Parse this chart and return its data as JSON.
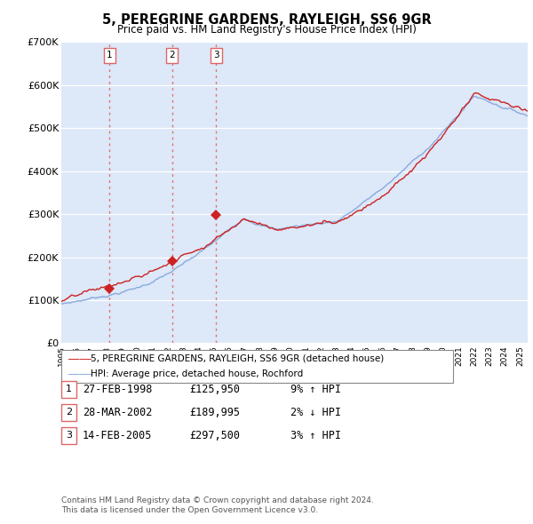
{
  "title": "5, PEREGRINE GARDENS, RAYLEIGH, SS6 9GR",
  "subtitle": "Price paid vs. HM Land Registry's House Price Index (HPI)",
  "bg_color": "#ffffff",
  "plot_bg_color": "#dde8f8",
  "grid_color": "#ffffff",
  "red_line_color": "#cc2222",
  "blue_line_color": "#88aadd",
  "sale_marker_color": "#cc2222",
  "vline_color": "#dd6666",
  "ylim": [
    0,
    700000
  ],
  "yticks": [
    0,
    100000,
    200000,
    300000,
    400000,
    500000,
    600000,
    700000
  ],
  "ytick_labels": [
    "£0",
    "£100K",
    "£200K",
    "£300K",
    "£400K",
    "£500K",
    "£600K",
    "£700K"
  ],
  "sale_years": [
    1998.15,
    2002.24,
    2005.12
  ],
  "sale_prices": [
    125950,
    189995,
    297500
  ],
  "sale_labels": [
    "1",
    "2",
    "3"
  ],
  "sale_dates": [
    "27-FEB-1998",
    "28-MAR-2002",
    "14-FEB-2005"
  ],
  "sale_price_labels": [
    "£125,950",
    "£189,995",
    "£297,500"
  ],
  "sale_hpi_labels": [
    "9% ↑ HPI",
    "2% ↓ HPI",
    "3% ↑ HPI"
  ],
  "legend_line1": "5, PEREGRINE GARDENS, RAYLEIGH, SS6 9GR (detached house)",
  "legend_line2": "HPI: Average price, detached house, Rochford",
  "footnote1": "Contains HM Land Registry data © Crown copyright and database right 2024.",
  "footnote2": "This data is licensed under the Open Government Licence v3.0."
}
